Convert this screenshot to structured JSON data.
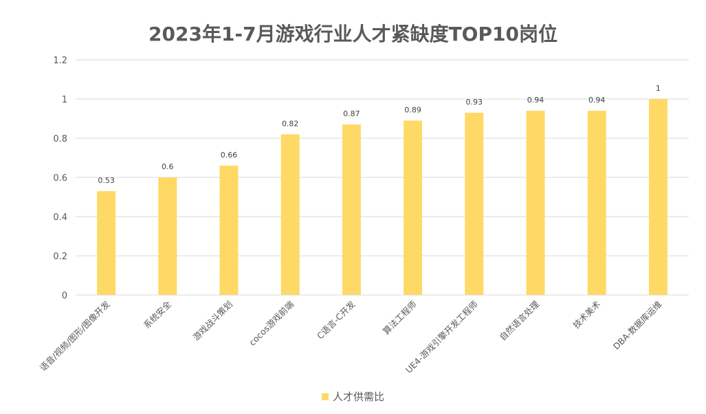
{
  "chart_data": {
    "type": "bar",
    "title": "2023年1-7月游戏行业人才紧缺度TOP10岗位",
    "xlabel": "",
    "ylabel": "",
    "categories": [
      "语音/视频/图形/图像开发",
      "系统安全",
      "游戏战斗策划",
      "cocos游戏前端",
      "C语言-C开发",
      "算法工程师",
      "UE4-游戏引擎开发工程师",
      "自然语言处理",
      "技术美术",
      "DBA-数据库运维"
    ],
    "series": [
      {
        "name": "人才供需比",
        "values": [
          0.53,
          0.6,
          0.66,
          0.82,
          0.87,
          0.89,
          0.93,
          0.94,
          0.94,
          1
        ],
        "value_labels": [
          "0.53",
          "0.6",
          "0.66",
          "0.82",
          "0.87",
          "0.89",
          "0.93",
          "0.94",
          "0.94",
          "1"
        ]
      }
    ],
    "ylim": [
      0,
      1.2
    ],
    "yticks": [
      0,
      0.2,
      0.4,
      0.6,
      0.8,
      1,
      1.2
    ],
    "ytick_labels": [
      "0",
      "0.2",
      "0.4",
      "0.6",
      "0.8",
      "1",
      "1.2"
    ],
    "grid": true,
    "legend_position": "bottom",
    "colors": {
      "bar": "#FFD966",
      "grid": "#D9D9D9",
      "text": "#595959"
    }
  }
}
